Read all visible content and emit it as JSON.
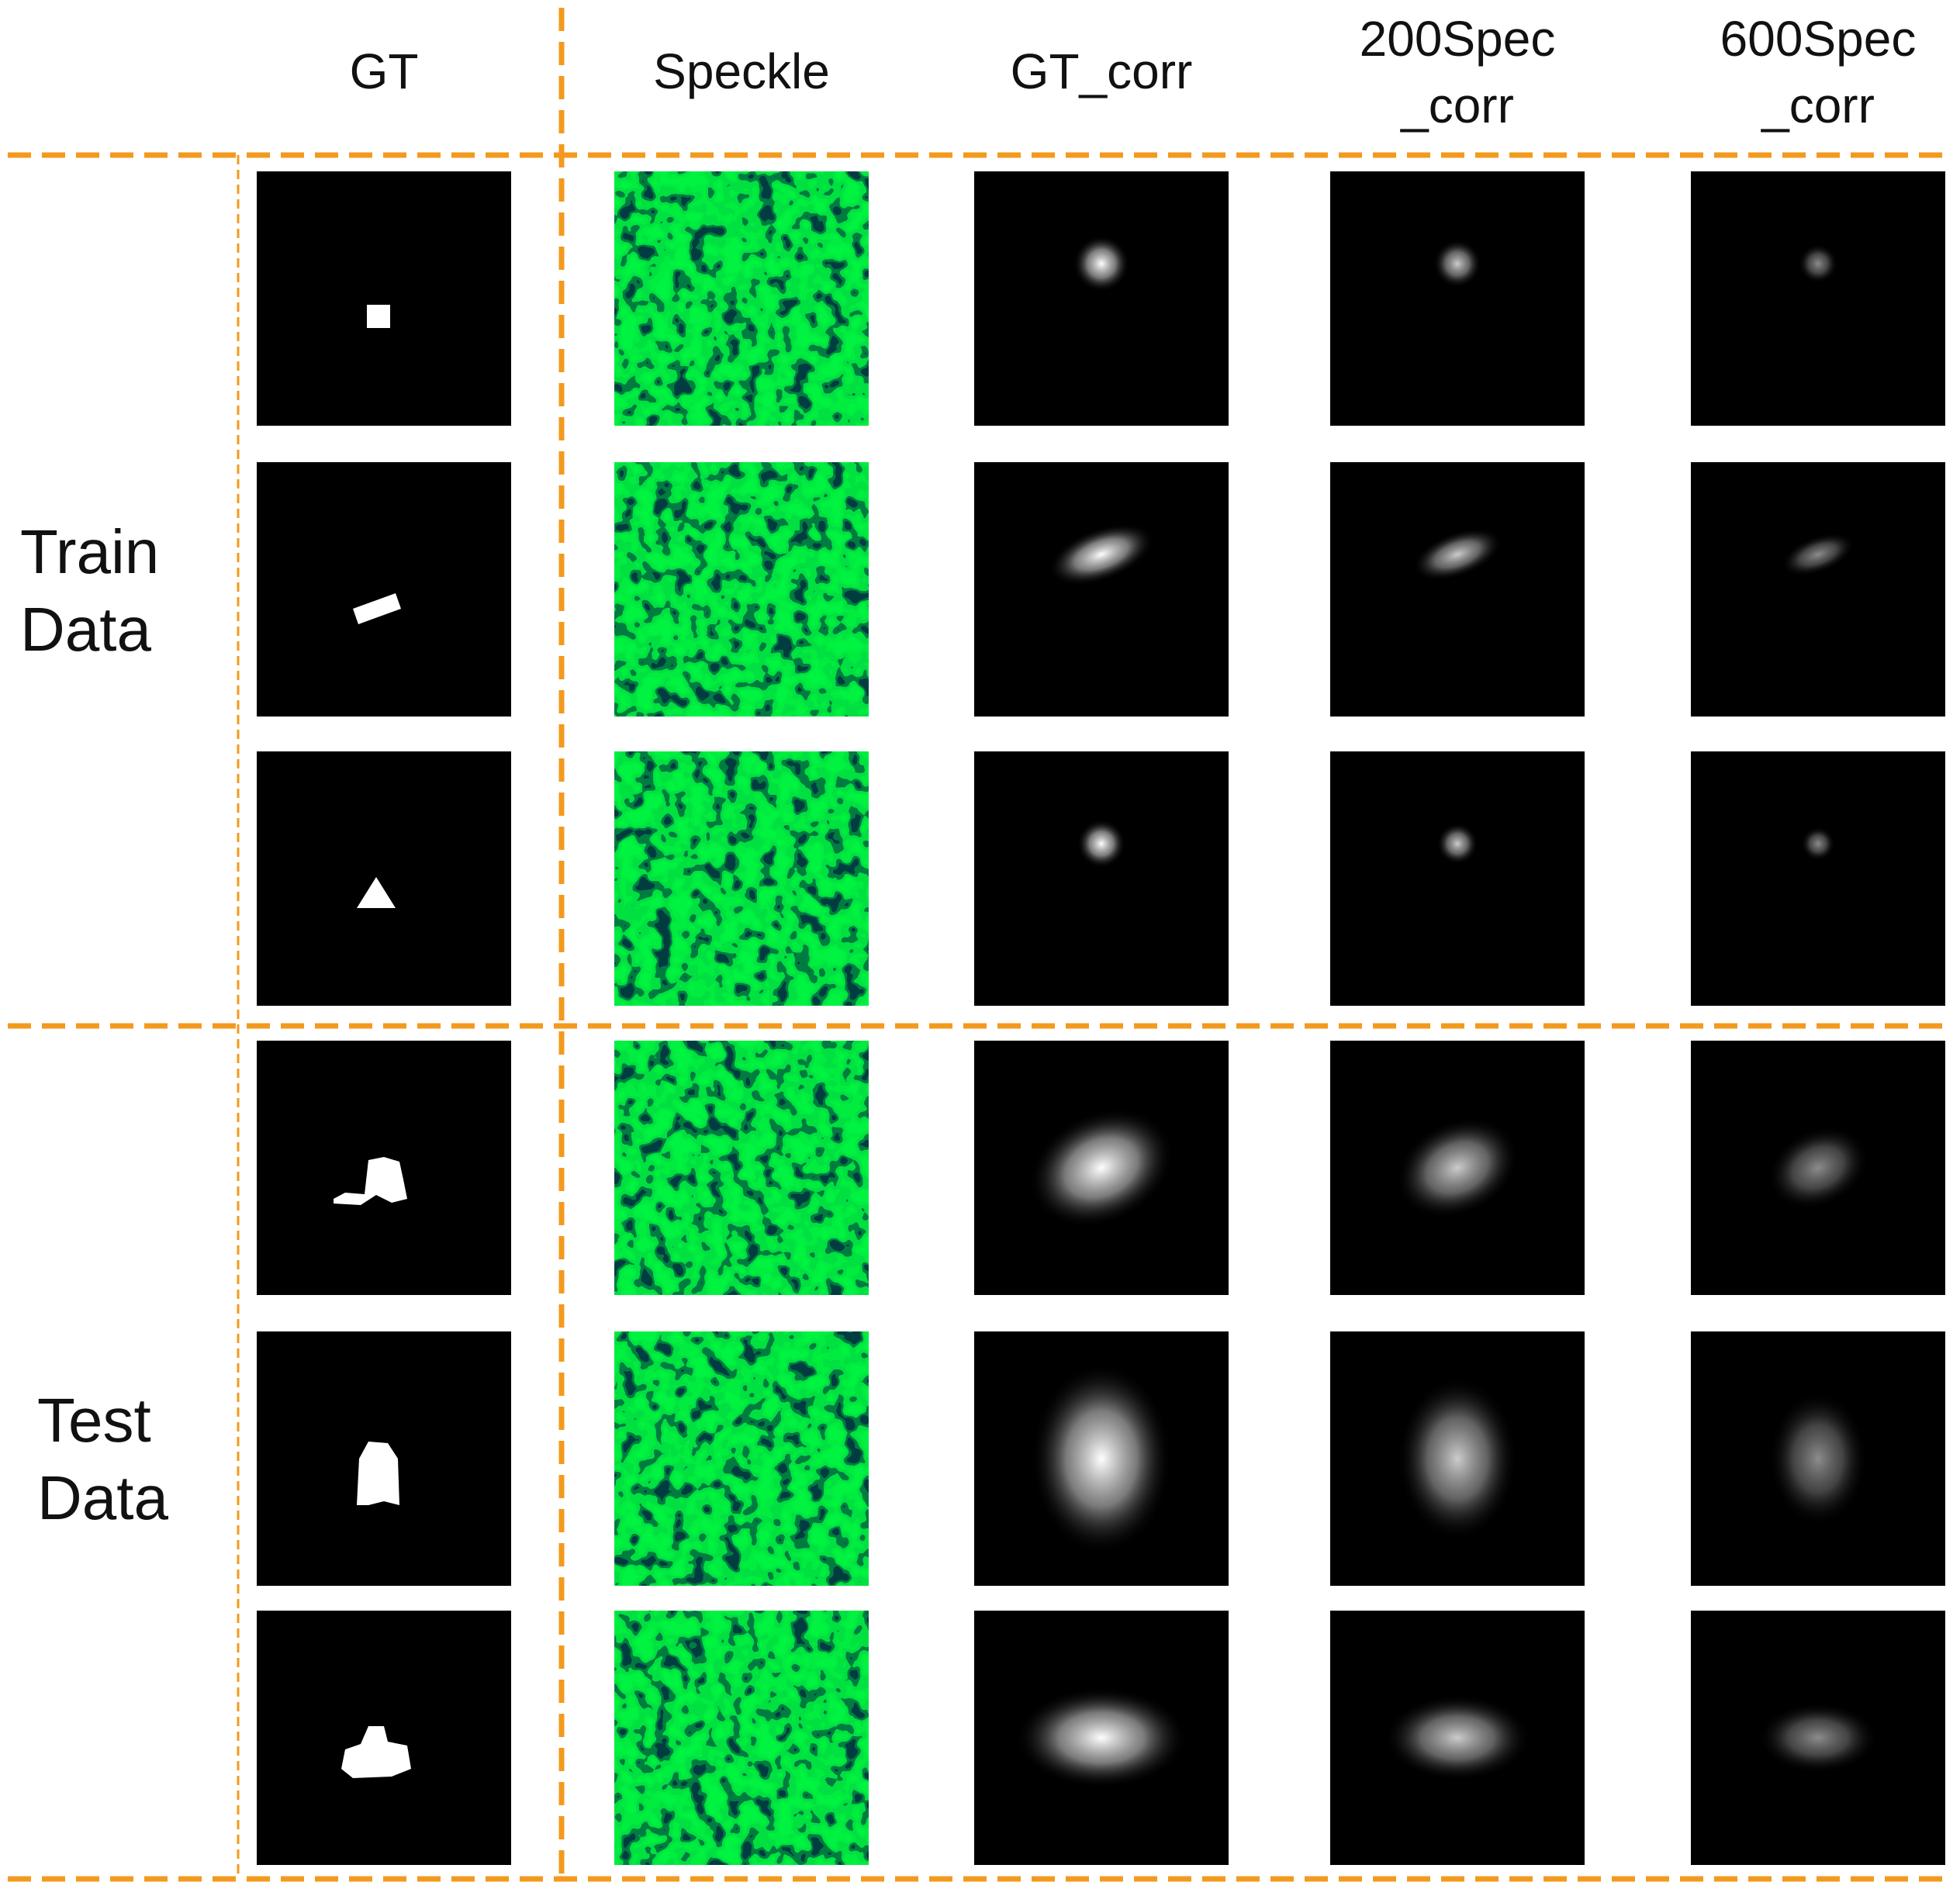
{
  "header": {
    "columns": [
      [
        "GT"
      ],
      [
        "Speckle"
      ],
      [
        "GT_corr"
      ],
      [
        "200Spec",
        "_corr"
      ],
      [
        "600Spec",
        "_corr"
      ]
    ]
  },
  "rows": {
    "groups": [
      [
        "Train",
        "Data"
      ],
      [
        "Test",
        "Data"
      ]
    ]
  }
}
